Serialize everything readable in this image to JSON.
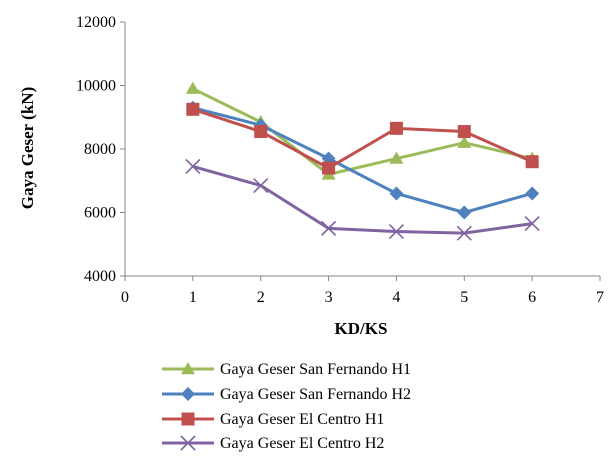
{
  "chart_data": {
    "type": "line",
    "title": "",
    "xlabel": "KD/KS",
    "ylabel": "Gaya Geser (kN)",
    "xlim": [
      0,
      7
    ],
    "ylim": [
      4000,
      12000
    ],
    "xticks": [
      "0",
      "1",
      "2",
      "3",
      "4",
      "5",
      "6",
      "7"
    ],
    "yticks": [
      "4000",
      "6000",
      "8000",
      "10000",
      "12000"
    ],
    "grid": false,
    "legend_position": "bottom",
    "x": [
      1,
      2,
      3,
      4,
      5,
      6
    ],
    "series": [
      {
        "name": "Gaya Geser San Fernando H1",
        "color": "#9BBB59",
        "marker": "triangle",
        "values": [
          9900,
          8850,
          7200,
          7700,
          8200,
          7700
        ]
      },
      {
        "name": "Gaya Geser San Fernando H2",
        "color": "#4F81BD",
        "marker": "diamond",
        "values": [
          9300,
          8750,
          7700,
          6600,
          6000,
          6600
        ]
      },
      {
        "name": "Gaya Geser El Centro H1",
        "color": "#C0504D",
        "marker": "square",
        "values": [
          9250,
          8550,
          7400,
          8650,
          8550,
          7600
        ]
      },
      {
        "name": "Gaya Geser El Centro H2",
        "color": "#8064A2",
        "marker": "x",
        "values": [
          7450,
          6850,
          5500,
          5400,
          5350,
          5650
        ]
      }
    ]
  }
}
